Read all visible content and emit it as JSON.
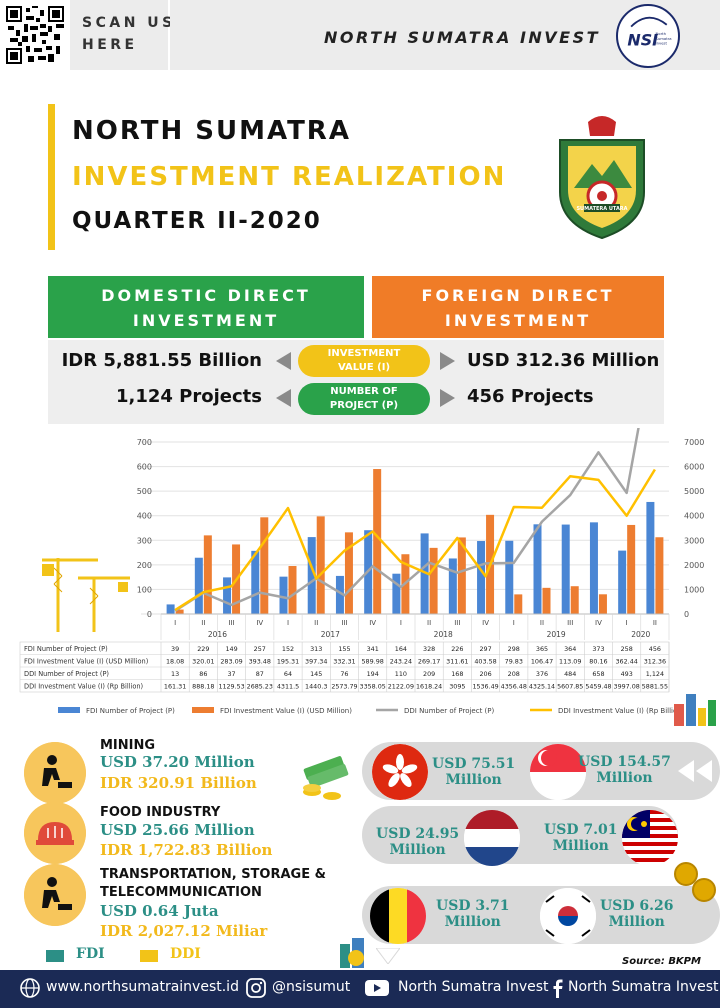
{
  "header": {
    "scan_line1": "SCAN US",
    "scan_line2": "HERE",
    "brand": "NORTH SUMATRA INVEST",
    "logo_text": "NSI",
    "logo_sub1": "North",
    "logo_sub2": "Sumatra",
    "logo_sub3": "Invest"
  },
  "title": {
    "line1": "NORTH SUMATRA",
    "line2": "INVESTMENT REALIZATION",
    "line3": "QUARTER II-2020",
    "emblem_text": "SUMATERA UTARA"
  },
  "summary": {
    "domestic_l1": "DOMESTIC DIRECT",
    "domestic_l2": "INVESTMENT",
    "foreign_l1": "FOREIGN DIRECT",
    "foreign_l2": "INVESTMENT",
    "ddi_value": "IDR 5,881.55 Billion",
    "fdi_value": "USD 312.36 Million",
    "ddi_projects": "1,124 Projects",
    "fdi_projects": "456 Projects",
    "pill_value_l1": "INVESTMENT",
    "pill_value_l2": "VALUE (I)",
    "pill_projects_l1": "NUMBER OF",
    "pill_projects_l2": "PROJECT (P)"
  },
  "chart_data": {
    "type": "bar",
    "years": [
      "2016",
      "2017",
      "2018",
      "2019",
      "2020"
    ],
    "quarters": [
      "I",
      "II",
      "III",
      "IV",
      "I",
      "II",
      "III",
      "IV",
      "I",
      "II",
      "III",
      "IV",
      "I",
      "II",
      "III",
      "IV",
      "I",
      "II"
    ],
    "left_axis": {
      "min": 0,
      "max": 700,
      "ticks": [
        "0",
        "100",
        "200",
        "300",
        "400",
        "500",
        "600",
        "700"
      ]
    },
    "right_axis": {
      "min": 0,
      "max": 7000,
      "ticks": [
        "0",
        "1000",
        "2000",
        "3000",
        "4000",
        "5000",
        "6000",
        "7000"
      ]
    },
    "series": [
      {
        "name": "FDI Number of Project (P)",
        "kind": "bar",
        "axis": "left",
        "color": "#4a86d4",
        "values": [
          39,
          229,
          149,
          257,
          152,
          313,
          155,
          341,
          164,
          328,
          226,
          297,
          298,
          365,
          364,
          373,
          258,
          456
        ],
        "labels": [
          "39",
          "229",
          "149",
          "257",
          "152",
          "313",
          "155",
          "341",
          "164",
          "328",
          "226",
          "297",
          "298",
          "365",
          "364",
          "373",
          "258",
          "456"
        ]
      },
      {
        "name": "FDI Investment Value (I) (USD Million)",
        "kind": "bar",
        "axis": "left",
        "color": "#ed7d31",
        "values": [
          18.08,
          320.01,
          283.09,
          393.48,
          195.31,
          397.34,
          332.31,
          589.98,
          243.24,
          269.17,
          311.61,
          403.58,
          79.83,
          106.47,
          113.09,
          80.16,
          362.44,
          312.36
        ],
        "labels": [
          "18.08",
          "320.01",
          "283.09",
          "393.48",
          "195.31",
          "397.34",
          "332.31",
          "589.98",
          "243.24",
          "269.17",
          "311.61",
          "403.58",
          "79.83",
          "106.47",
          "113.09",
          "80.16",
          "362.44",
          "312.36"
        ]
      },
      {
        "name": "DDI Number of Project (P)",
        "kind": "line",
        "axis": "left",
        "color": "#a5a5a5",
        "values": [
          13,
          86,
          37,
          87,
          64,
          145,
          76,
          194,
          110,
          209,
          168,
          206,
          208,
          376,
          484,
          658,
          493,
          1124
        ],
        "labels": [
          "13",
          "86",
          "37",
          "87",
          "64",
          "145",
          "76",
          "194",
          "110",
          "209",
          "168",
          "206",
          "208",
          "376",
          "484",
          "658",
          "493",
          "1,124"
        ]
      },
      {
        "name": "DDI Investment Value (I) (Rp Billion)",
        "kind": "line",
        "axis": "right",
        "color": "#ffc000",
        "values": [
          161.31,
          888.18,
          1129.53,
          2685.23,
          4311.5,
          1440.3,
          2573.79,
          3358.05,
          2122.09,
          1618.24,
          3095,
          1536.49,
          4356.48,
          4325.14,
          5607.85,
          5459.48,
          3997.08,
          5881.55
        ],
        "labels": [
          "161.31",
          "888.18",
          "1129.53",
          "2685.23",
          "4311.5",
          "1440.3",
          "2573.79",
          "3358.05",
          "2122.09",
          "1618.24",
          "3095",
          "1536.49",
          "4356.48",
          "4325.14",
          "5607.85",
          "5459.48",
          "3997.08",
          "5881.55"
        ]
      }
    ],
    "table_row_labels": [
      "FDI Number of Project (P)",
      "FDI Investment Value (I) (USD Million)",
      "DDI Number of Project (P)",
      "DDI Investment Value (I) (Rp Billion)"
    ],
    "legend_position": "bottom"
  },
  "sectors": [
    {
      "name_l1": "MINING",
      "name_l2": "",
      "fdi": "USD 37.20 Million",
      "ddi": "IDR 320.91 Billion"
    },
    {
      "name_l1": "FOOD INDUSTRY",
      "name_l2": "",
      "fdi": "USD 25.66 Million",
      "ddi": "IDR 1,722.83 Billion"
    },
    {
      "name_l1": "TRANSPORTATION, STORAGE &",
      "name_l2": "TELECOMMUNICATION",
      "fdi": "USD 0.64 Juta",
      "ddi": "IDR 2,027.12 Miliar"
    }
  ],
  "legend": {
    "fdi": "FDI",
    "ddi": "DDI",
    "fdi_color": "#2c8f86",
    "ddi_color": "#f2c318"
  },
  "countries": [
    {
      "flag": "hong-kong",
      "value_l1": "USD 75.51",
      "value_l2": "Million"
    },
    {
      "flag": "singapore",
      "value_l1": "USD 154.57",
      "value_l2": "Million"
    },
    {
      "flag": "netherlands",
      "value_l1": "USD 24.95",
      "value_l2": "Million"
    },
    {
      "flag": "malaysia",
      "value_l1": "USD 7.01",
      "value_l2": "Million"
    },
    {
      "flag": "belgium",
      "value_l1": "USD 3.71",
      "value_l2": "Million"
    },
    {
      "flag": "south-korea",
      "value_l1": "USD 6.26",
      "value_l2": "Million"
    }
  ],
  "source": "Source: BKPM",
  "footer": {
    "website": "www.northsumatrainvest.id",
    "instagram": "@nsisumut",
    "youtube": "North Sumatra Invest",
    "facebook": "North Sumatra Invest"
  }
}
